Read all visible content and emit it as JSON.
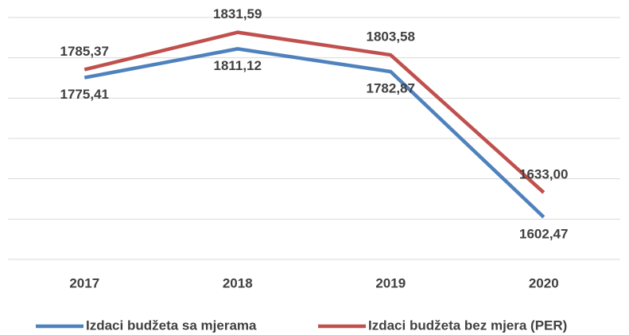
{
  "chart_data": {
    "type": "line",
    "categories": [
      "2017",
      "2018",
      "2019",
      "2020"
    ],
    "series": [
      {
        "name": "Izdaci budžeta sa mjerama",
        "color": "#4f81bd",
        "values": [
          1775.41,
          1811.12,
          1782.87,
          1602.47
        ],
        "value_labels": [
          "1775,41",
          "1811,12",
          "1782,87",
          "1602,47"
        ]
      },
      {
        "name": "Izdaci budžeta bez mjera (PER)",
        "color": "#c0504d",
        "values": [
          1785.37,
          1831.59,
          1803.58,
          1633.0
        ],
        "value_labels": [
          "1785,37",
          "1831,59",
          "1803,58",
          "1633,00"
        ]
      }
    ],
    "ylim": [
      1550,
      1850
    ],
    "yticks": [
      1550,
      1600,
      1650,
      1700,
      1750,
      1800,
      1850
    ],
    "grid": true
  }
}
